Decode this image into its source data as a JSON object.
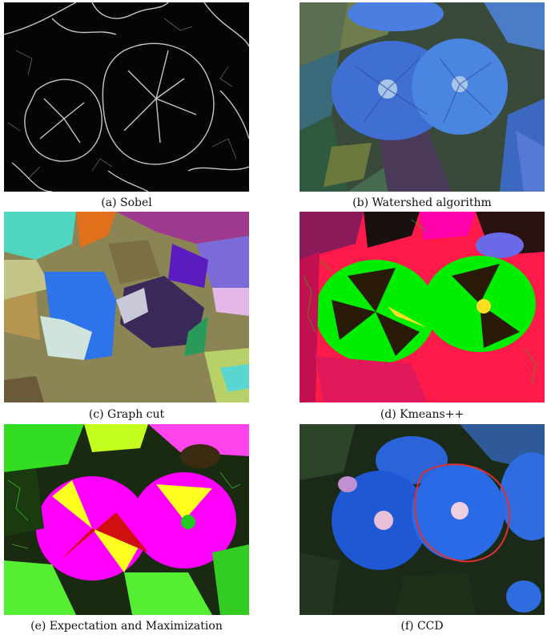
{
  "figure": {
    "panels": [
      {
        "caption": "(a) Sobel"
      },
      {
        "caption": "(b) Watershed algorithm"
      },
      {
        "caption": "(c) Graph cut"
      },
      {
        "caption": "(d) Kmeans++"
      },
      {
        "caption": "(e) Expectation and Maximization"
      },
      {
        "caption": "(f) CCD"
      }
    ]
  }
}
